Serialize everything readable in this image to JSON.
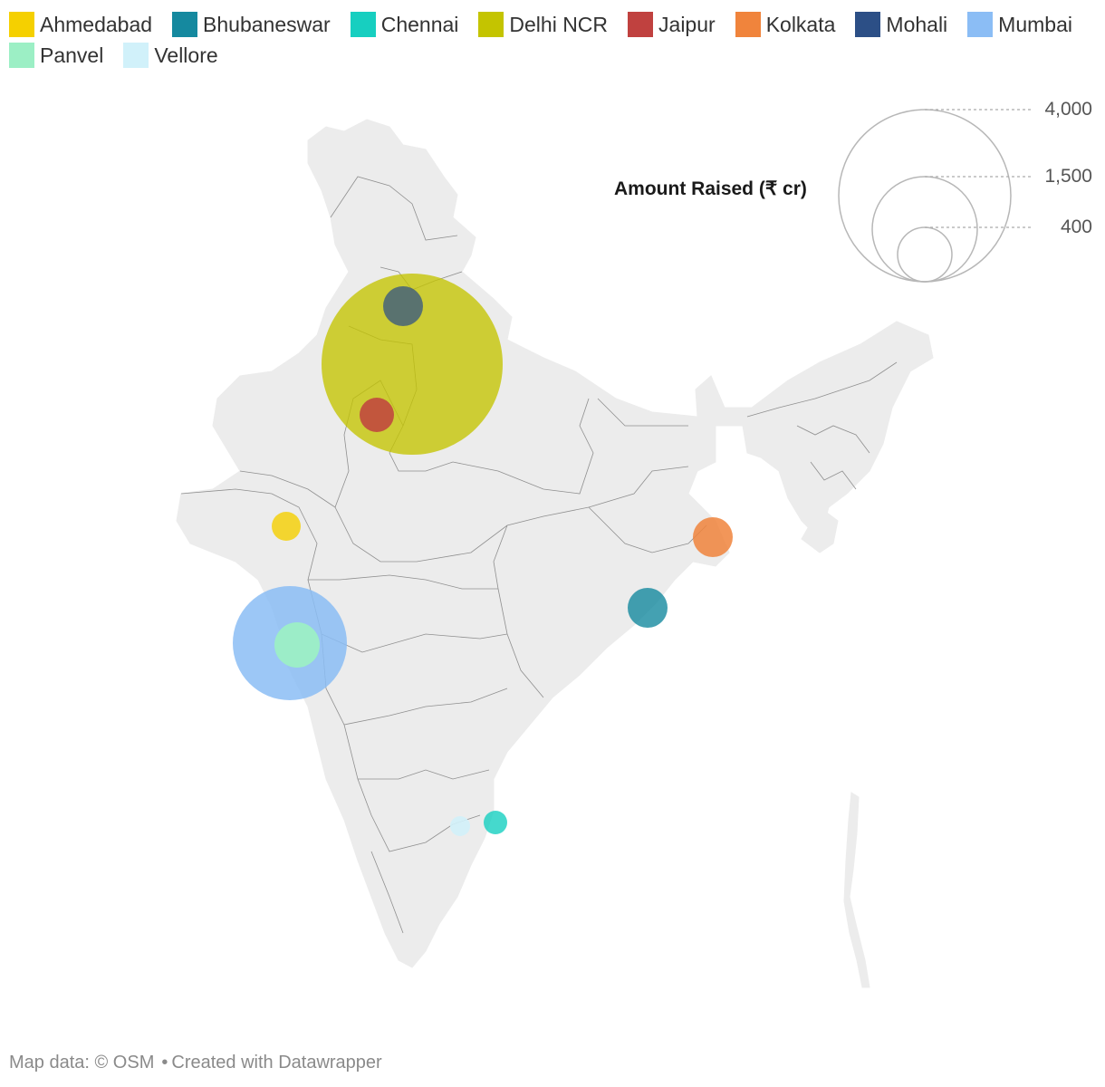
{
  "legend": {
    "rows": [
      [
        {
          "label": "Ahmedabad",
          "color": "#f5d000"
        },
        {
          "label": "Bhubaneswar",
          "color": "#15899f"
        },
        {
          "label": "Chennai",
          "color": "#17cfc0"
        },
        {
          "label": "Delhi NCR",
          "color": "#c4c400"
        },
        {
          "label": "Jaipur",
          "color": "#c0413f"
        },
        {
          "label": "Kolkata",
          "color": "#f0843c"
        },
        {
          "label": "Mohali",
          "color": "#2c4f86"
        },
        {
          "label": "Mumbai",
          "color": "#8bbdf5"
        }
      ],
      [
        {
          "label": "Panvel",
          "color": "#9cefc5"
        },
        {
          "label": "Vellore",
          "color": "#d1f1fa"
        }
      ]
    ]
  },
  "size_legend": {
    "title": "Amount Raised (₹ cr)",
    "values": [
      "4,000",
      "1,500",
      "400"
    ]
  },
  "footer": {
    "map_data": "Map data: © OSM",
    "separator": "•",
    "credit": "Created with Datawrapper"
  }
}
